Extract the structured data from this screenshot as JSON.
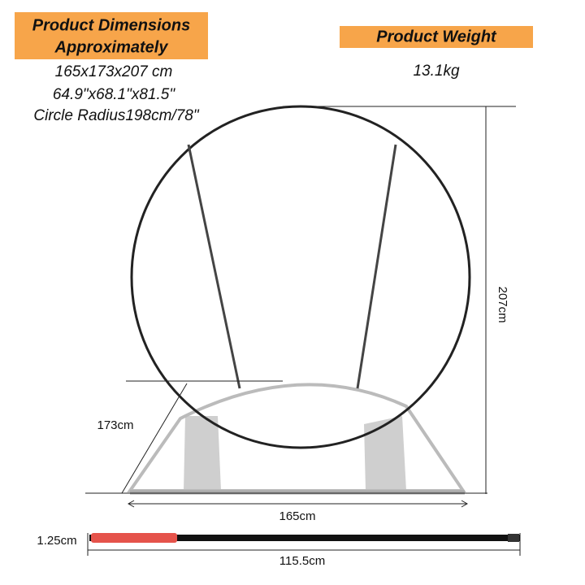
{
  "dimensions": {
    "heading": [
      "Product Dimensions",
      "Approximately"
    ],
    "lines": [
      "165x173x207 cm",
      "64.9\"x68.1\"x81.5\"",
      "Circle Radius198cm/78\""
    ]
  },
  "weight": {
    "heading": "Product Weight",
    "value": "13.1kg"
  },
  "labels": {
    "height": "207cm",
    "depth": "173cm",
    "width": "165cm",
    "rod_diameter": "1.25cm",
    "rod_length": "115.5cm"
  }
}
